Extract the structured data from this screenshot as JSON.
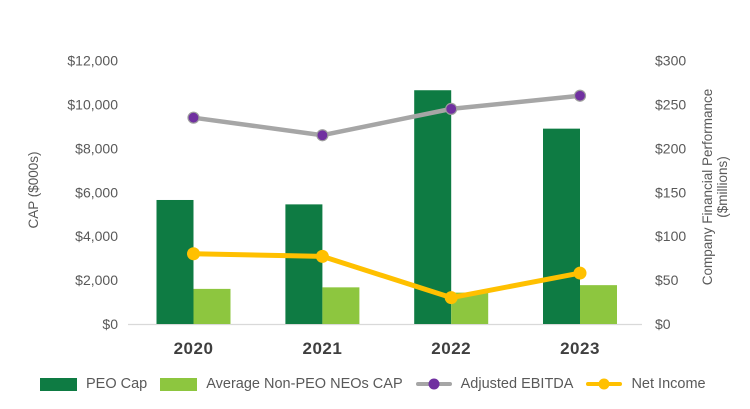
{
  "chart_data": {
    "type": "combo-bar-line",
    "categories": [
      "2020",
      "2021",
      "2022",
      "2023"
    ],
    "bar_series": [
      {
        "name": "PEO Cap",
        "axis": "left",
        "color": "#0e7b43",
        "values": [
          5650,
          5450,
          10650,
          8900
        ]
      },
      {
        "name": "Average Non-PEO NEOs CAP",
        "axis": "left",
        "color": "#8dc63f",
        "values": [
          1600,
          1670,
          1430,
          1770
        ]
      }
    ],
    "line_series": [
      {
        "name": "Adjusted EBITDA",
        "axis": "right",
        "line_color": "#a6a6a6",
        "marker_color": "#7030a0",
        "values": [
          235,
          215,
          245,
          260
        ]
      },
      {
        "name": "Net Income",
        "axis": "right",
        "line_color": "#ffc000",
        "marker_color": "#ffc000",
        "values": [
          80,
          77,
          30,
          58
        ]
      }
    ],
    "left_axis": {
      "title": "CAP ($000s)",
      "min": 0,
      "max": 12000,
      "step": 2000,
      "ticks": [
        "$0",
        "$2,000",
        "$4,000",
        "$6,000",
        "$8,000",
        "$10,000",
        "$12,000"
      ]
    },
    "right_axis": {
      "title_line1": "Company Financial Performance",
      "title_line2": "($millions)",
      "min": 0,
      "max": 300,
      "step": 50,
      "ticks": [
        "$0",
        "$50",
        "$100",
        "$150",
        "$200",
        "$250",
        "$300"
      ]
    },
    "grid": "off",
    "legend_position": "bottom",
    "baseline_color": "#d9d9d9"
  },
  "legend": {
    "items": [
      {
        "label": "PEO Cap",
        "type": "bar",
        "color": "#0e7b43"
      },
      {
        "label": "Average Non-PEO NEOs CAP",
        "type": "bar",
        "color": "#8dc63f"
      },
      {
        "label": "Adjusted EBITDA",
        "type": "line",
        "line_color": "#a6a6a6",
        "marker_color": "#7030a0"
      },
      {
        "label": "Net Income",
        "type": "line",
        "line_color": "#ffc000",
        "marker_color": "#ffc000"
      }
    ]
  }
}
